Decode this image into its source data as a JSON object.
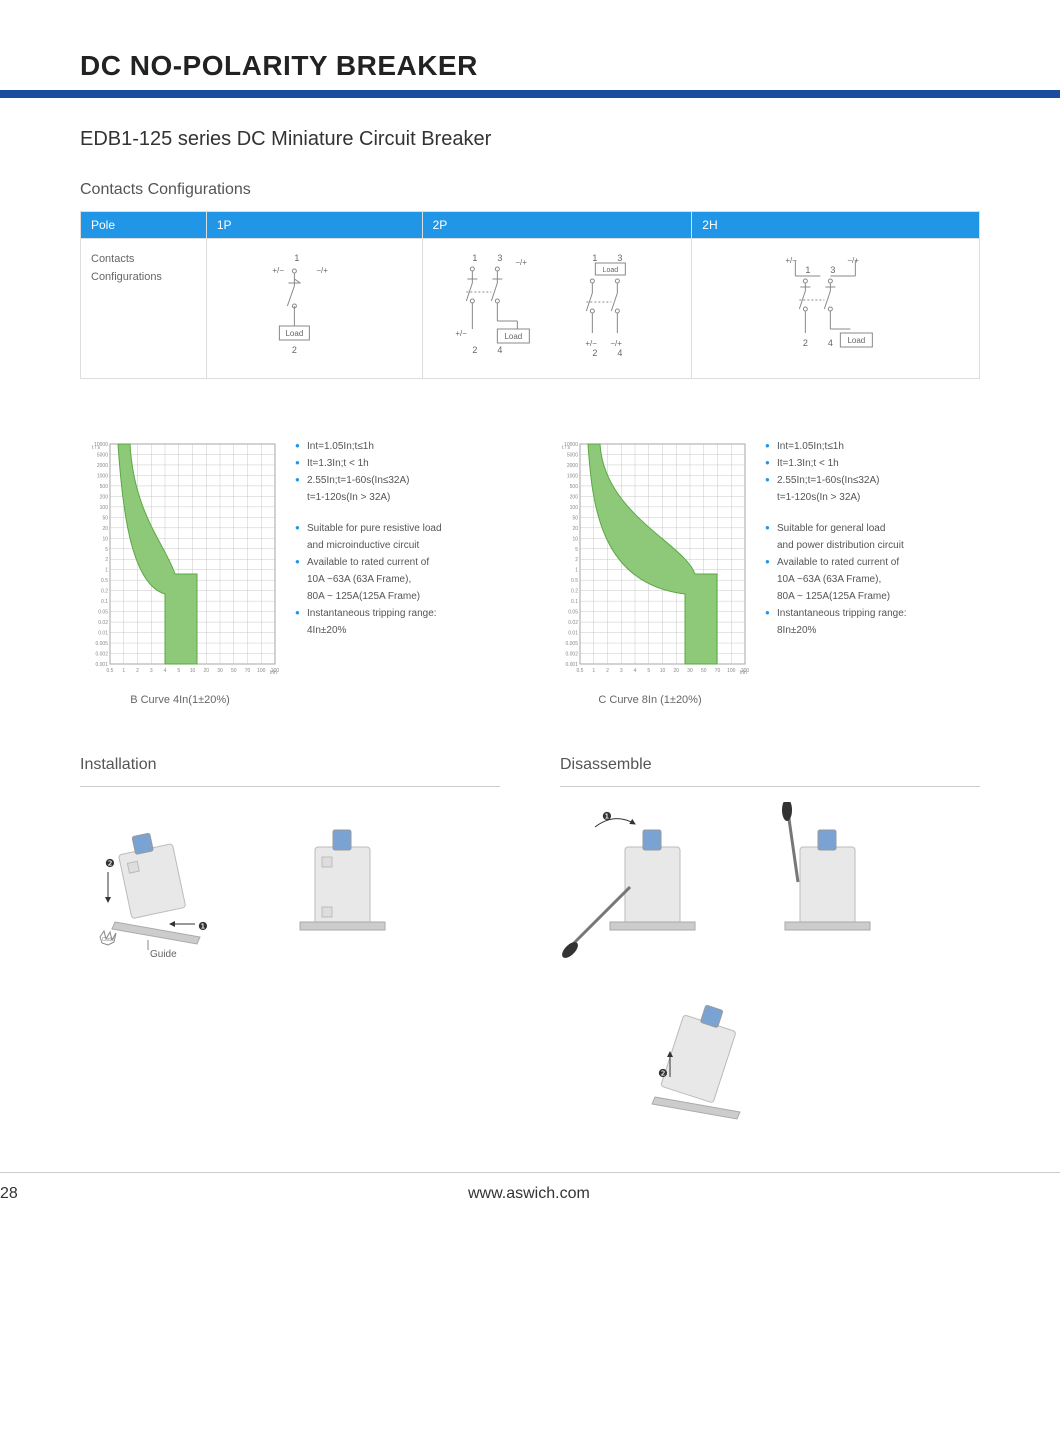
{
  "header": {
    "title": "DC NO-POLARITY BREAKER"
  },
  "subtitle": "EDB1-125 series DC Miniature Circuit Breaker",
  "contacts": {
    "heading": "Contacts  Configurations",
    "cols": [
      "Pole",
      "1P",
      "2P",
      "2H"
    ],
    "row_label": "Contacts\nConfigurations",
    "colors": {
      "header_bg": "#2196e6",
      "header_fg": "#ffffff",
      "border": "#dddddd",
      "line": "#888888",
      "box_fill": "#ffffff"
    }
  },
  "charts": {
    "common": {
      "y_labels": [
        "10000",
        "5000",
        "2000",
        "1000",
        "500",
        "200",
        "100",
        "50",
        "20",
        "10",
        "5",
        "2",
        "1",
        "0.5",
        "0.2",
        "0.1",
        "0.05",
        "0.02",
        "0.01",
        "0.005",
        "0.002",
        "0.001"
      ],
      "x_labels": [
        "0.5",
        "1",
        "2",
        "3",
        "4",
        "5",
        "10",
        "20",
        "30",
        "50",
        "70",
        "100",
        "200"
      ],
      "grid_color": "#999999",
      "curve_fill": "#8ec97a",
      "curve_stroke": "#5aa843",
      "bg": "#ffffff",
      "y_axis_label": "t / s"
    },
    "b": {
      "caption": "B Curve 4In(1±20%)",
      "bullets1": [
        "Int=1.05In;t≤1h",
        "It=1.3In;t < 1h",
        "2.55In;t=1-60s(In≤32A)"
      ],
      "sub1": "t=1-120s(In > 32A)",
      "bullets2": [
        "Suitable for pure resistive load",
        "Available to rated current of",
        "Instantaneous tripping range:"
      ],
      "sub2a": "and microinductive circuit",
      "sub2b": "10A ~63A (63A Frame),",
      "sub2c": "80A ~ 125A(125A Frame)",
      "sub2d": "4In±20%",
      "curve_x_knee": 65
    },
    "c": {
      "caption": "C Curve 8In (1±20%)",
      "bullets1": [
        "Int=1.05In;t≤1h",
        "It=1.3In;t < 1h",
        "2.55In;t=1-60s(In≤32A)"
      ],
      "sub1": "t=1-120s(In > 32A)",
      "bullets2": [
        "Suitable for general load",
        "Available to rated current of",
        "Instantaneous tripping range:"
      ],
      "sub2a": "and power distribution circuit",
      "sub2b": "10A ~63A (63A Frame),",
      "sub2c": "80A ~ 125A(125A Frame)",
      "sub2d": "8In±20%",
      "curve_x_knee": 115
    }
  },
  "install": {
    "heading": "Installation",
    "guide_label": "Guide",
    "click_label": "Click!",
    "markers": [
      "❷",
      "❶"
    ]
  },
  "disassemble": {
    "heading": "Disassemble",
    "markers": [
      "❶",
      "❷"
    ]
  },
  "footer": {
    "page": "28",
    "url": "www.aswich.com"
  },
  "colors": {
    "accent": "#1a4d9e",
    "accent2": "#2196e6",
    "text": "#333333",
    "muted": "#666666",
    "breaker_body": "#e8e8e8",
    "breaker_stroke": "#bbbbbb",
    "toggle": "#7aa3d4",
    "rail": "#cccccc",
    "screwdriver_handle": "#333333",
    "screwdriver_shaft": "#777777"
  }
}
